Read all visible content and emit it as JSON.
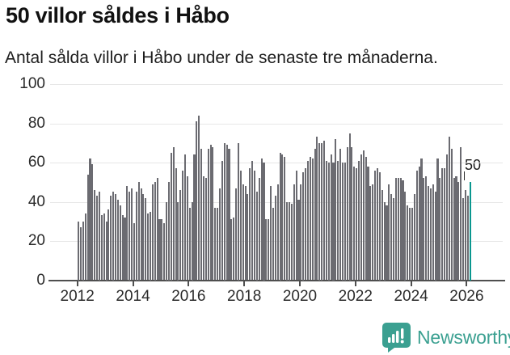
{
  "chart_data": {
    "type": "bar",
    "title": "50 villor såldes i Håbo",
    "subtitle": "Antal sålda villor i Håbo under de senaste tre månaderna.",
    "frequency": "monthly",
    "x_start": "2012-01",
    "x_end": "2026-02",
    "values": [
      30,
      27,
      30,
      34,
      54,
      62,
      59,
      46,
      43,
      45,
      33,
      34,
      30,
      36,
      43,
      45,
      44,
      41,
      38,
      33,
      32,
      48,
      45,
      47,
      29,
      45,
      50,
      47,
      44,
      42,
      34,
      35,
      49,
      50,
      52,
      31,
      31,
      29,
      40,
      50,
      65,
      68,
      57,
      40,
      46,
      56,
      64,
      53,
      37,
      40,
      64,
      81,
      84,
      67,
      53,
      52,
      67,
      69,
      68,
      37,
      37,
      47,
      61,
      70,
      69,
      67,
      31,
      32,
      47,
      70,
      56,
      49,
      48,
      44,
      57,
      61,
      56,
      45,
      52,
      62,
      60,
      31,
      31,
      48,
      37,
      43,
      49,
      65,
      64,
      63,
      40,
      40,
      39,
      49,
      56,
      41,
      49,
      55,
      57,
      61,
      63,
      62,
      67,
      73,
      70,
      70,
      71,
      61,
      60,
      64,
      60,
      72,
      61,
      67,
      60,
      60,
      68,
      75,
      68,
      58,
      57,
      61,
      64,
      66,
      63,
      58,
      48,
      49,
      56,
      57,
      55,
      46,
      40,
      38,
      49,
      44,
      42,
      52,
      52,
      52,
      51,
      45,
      38,
      37,
      37,
      44,
      56,
      58,
      62,
      52,
      53,
      48,
      47,
      49,
      45,
      62,
      52,
      57,
      57,
      64,
      73,
      67,
      52,
      53,
      50,
      68,
      42,
      46,
      43,
      50
    ],
    "highlight": {
      "index": 169,
      "value": 50,
      "label": "50",
      "color": "#0a978f"
    },
    "x_tick_labels": [
      "2012",
      "2014",
      "2016",
      "2018",
      "2020",
      "2022",
      "2024",
      "2026"
    ],
    "y_ticks": [
      0,
      20,
      40,
      60,
      80,
      100
    ],
    "ylim": [
      0,
      100
    ],
    "grid": "horizontal",
    "legend": "none",
    "bar_color": "#6b6b71"
  },
  "footer": {
    "brand": "Newsworthy"
  },
  "icons": {
    "logo": "bar-chart-speech-bubble-icon"
  },
  "colors": {
    "bar": "#6b6b71",
    "highlight": "#0a978f",
    "brand": "#3ba091",
    "grid": "#e7e7e7",
    "axis": "#4f4f4f",
    "text": "#1a1a1a"
  }
}
